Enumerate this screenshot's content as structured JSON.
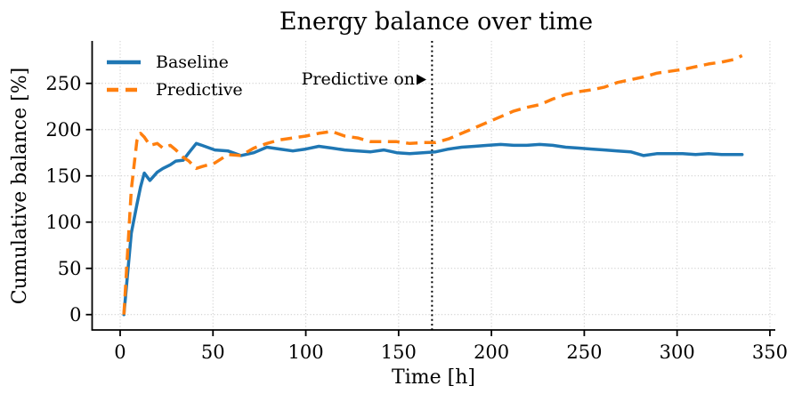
{
  "chart_data": {
    "type": "line",
    "title": "Energy balance over time",
    "xlabel": "Time [h]",
    "ylabel": "Cumulative balance [%]",
    "xlim": [
      -15.1,
      352.9
    ],
    "ylim": [
      -16.6,
      295.9
    ],
    "xticks": [
      0,
      50,
      100,
      150,
      200,
      250,
      300,
      350
    ],
    "yticks": [
      0,
      50,
      100,
      150,
      200,
      250
    ],
    "grid": true,
    "grid_style": "dotted",
    "legend_position": "upper-left",
    "x": [
      2,
      6,
      9,
      11,
      13,
      16,
      20,
      23,
      27,
      30,
      34,
      37,
      41,
      44,
      51,
      58,
      65,
      72,
      79,
      86,
      93,
      100,
      107,
      114,
      121,
      128,
      135,
      142,
      149,
      156,
      163,
      170,
      177,
      184,
      191,
      198,
      205,
      212,
      219,
      226,
      233,
      240,
      247,
      254,
      261,
      268,
      275,
      282,
      289,
      296,
      303,
      310,
      317,
      324,
      331,
      335
    ],
    "series": [
      {
        "name": "Baseline",
        "color": "#1f77b4",
        "style": "solid",
        "values": [
          0,
          88,
          119,
          138,
          153,
          145,
          154,
          158,
          162,
          166,
          167,
          175,
          185,
          183,
          178,
          177,
          172,
          175,
          181,
          179,
          177,
          179,
          182,
          180,
          178,
          177,
          176,
          178,
          175,
          174,
          175,
          176,
          179,
          181,
          182,
          183,
          184,
          183,
          183,
          184,
          183,
          181,
          180,
          179,
          178,
          177,
          176,
          172,
          174,
          174,
          174,
          173,
          174,
          173,
          173,
          173
        ]
      },
      {
        "name": "Predictive",
        "color": "#ff7f0e",
        "style": "dashed",
        "values": [
          0,
          135,
          188,
          196,
          192,
          183,
          185,
          180,
          183,
          178,
          170,
          166,
          158,
          160,
          164,
          173,
          172,
          180,
          185,
          189,
          191,
          193,
          196,
          198,
          193,
          191,
          187,
          187,
          187,
          185,
          186,
          186,
          190,
          196,
          202,
          208,
          214,
          220,
          224,
          227,
          233,
          238,
          241,
          243,
          246,
          251,
          254,
          257,
          261,
          263,
          265,
          268,
          271,
          273,
          276,
          280
        ]
      }
    ],
    "vline": {
      "x": 168,
      "color": "#000000",
      "style": "dotted"
    },
    "annotation": {
      "text": "Predictive on",
      "x": 160,
      "y": 250,
      "arrow": "right-triangle"
    }
  },
  "colors": {
    "baseline": "#1f77b4",
    "predictive": "#ff7f0e",
    "grid": "#cfcfcf",
    "spine": "#000000",
    "background": "#ffffff"
  }
}
